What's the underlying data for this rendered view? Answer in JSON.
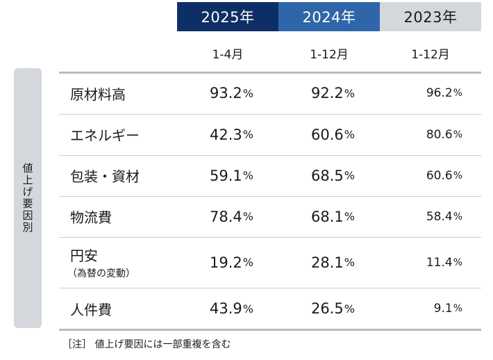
{
  "chart_data": {
    "type": "table",
    "side_label": "値上げ要因別",
    "columns": [
      {
        "year": "2025年",
        "period": "1-4月"
      },
      {
        "year": "2024年",
        "period": "1-12月"
      },
      {
        "year": "2023年",
        "period": "1-12月"
      }
    ],
    "rows": [
      {
        "label": "原材料高",
        "sublabel": "",
        "values": [
          "93.2",
          "92.2",
          "96.2"
        ]
      },
      {
        "label": "エネルギー",
        "sublabel": "",
        "values": [
          "42.3",
          "60.6",
          "80.6"
        ]
      },
      {
        "label": "包装・資材",
        "sublabel": "",
        "values": [
          "59.1",
          "68.5",
          "60.6"
        ]
      },
      {
        "label": "物流費",
        "sublabel": "",
        "values": [
          "78.4",
          "68.1",
          "58.4"
        ]
      },
      {
        "label": "円安",
        "sublabel": "（為替の変動）",
        "values": [
          "19.2",
          "28.1",
          "11.4"
        ]
      },
      {
        "label": "人件費",
        "sublabel": "",
        "values": [
          "43.9",
          "26.5",
          "9.1"
        ]
      }
    ],
    "unit": "%",
    "note": "［注］ 値上げ要因には一部重複を含む",
    "header_colors": [
      "#0e2f66",
      "#2f66a9",
      "#d4d8dd"
    ]
  }
}
